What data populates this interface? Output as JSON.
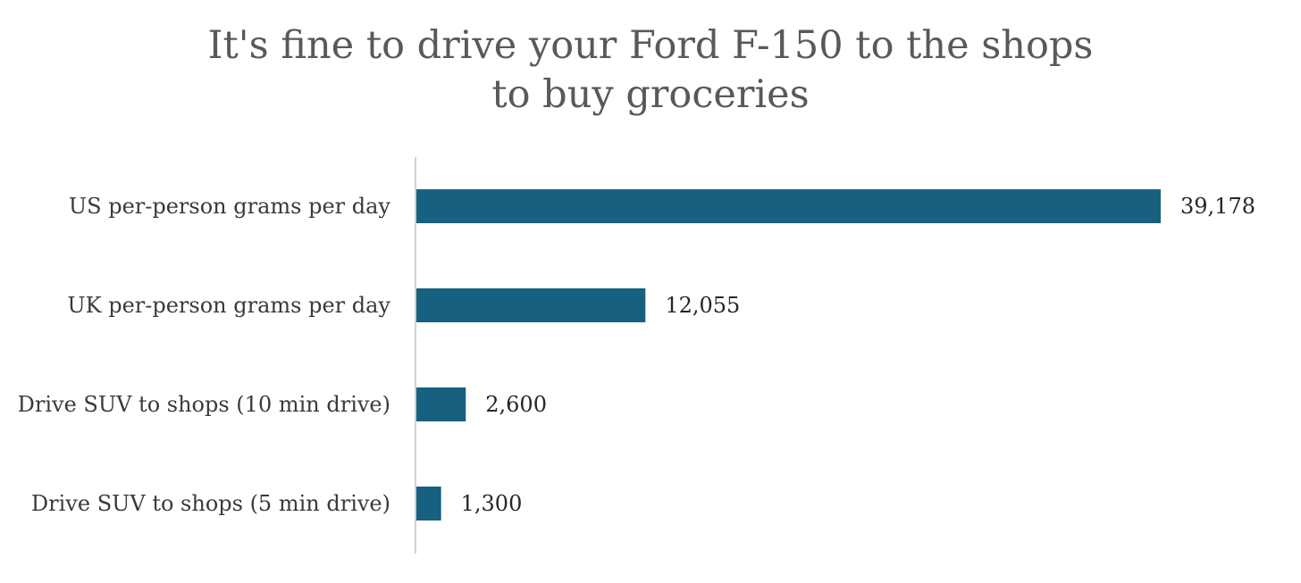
{
  "chart_data": {
    "type": "bar",
    "orientation": "horizontal",
    "title": "It's fine to drive your Ford F-150 to the shops to buy groceries",
    "categories": [
      "US per-person grams per day",
      "UK per-person grams per day",
      "Drive SUV to shops (10 min drive)",
      "Drive SUV to shops (5 min drive)"
    ],
    "values": [
      39178,
      12055,
      2600,
      1300
    ],
    "value_labels": [
      "39,178",
      "12,055",
      "2,600",
      "1,300"
    ],
    "xlabel": "",
    "ylabel": "",
    "xlim": [
      0,
      39178
    ],
    "grid": false,
    "legend": "none",
    "bar_color": "#17607f",
    "axis_color": "#d0d0d0"
  }
}
